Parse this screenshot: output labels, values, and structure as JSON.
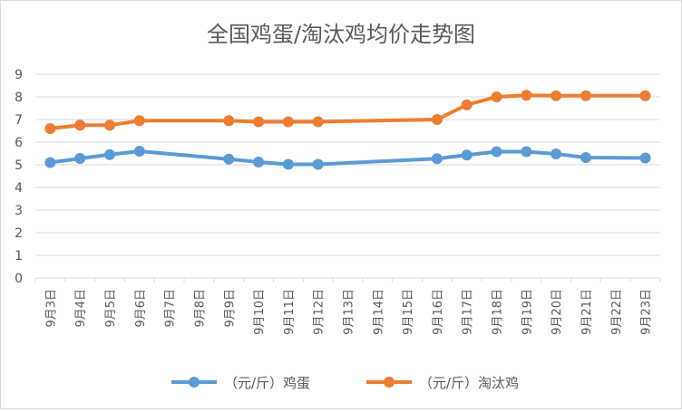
{
  "chart_data": {
    "type": "line",
    "title": "全国鸡蛋/淘汰鸡均价走势图",
    "categories": [
      "9月3日",
      "9月4日",
      "9月5日",
      "9月6日",
      "9月7日",
      "9月8日",
      "9月9日",
      "9月10日",
      "9月11日",
      "9月12日",
      "9月13日",
      "9月14日",
      "9月15日",
      "9月16日",
      "9月17日",
      "9月18日",
      "9月19日",
      "9月20日",
      "9月21日",
      "9月22日",
      "9月23日"
    ],
    "ylim": [
      0,
      9
    ],
    "yticks": [
      "0",
      "1",
      "2",
      "3",
      "4",
      "5",
      "6",
      "7",
      "8",
      "9"
    ],
    "grid": true,
    "legend": "bottom",
    "series": [
      {
        "name": "（元/斤）鸡蛋",
        "color": "#5B9BD5",
        "values": [
          5.1,
          5.28,
          5.45,
          5.6,
          null,
          null,
          5.25,
          5.12,
          5.02,
          5.02,
          null,
          null,
          null,
          5.27,
          5.43,
          5.58,
          5.58,
          5.48,
          5.32,
          null,
          5.3
        ]
      },
      {
        "name": "（元/斤）淘汰鸡",
        "color": "#ED7D31",
        "values": [
          6.6,
          6.75,
          6.75,
          6.95,
          null,
          null,
          6.95,
          6.9,
          6.9,
          6.9,
          null,
          null,
          null,
          7.0,
          7.65,
          8.0,
          8.07,
          8.05,
          8.05,
          null,
          8.05
        ]
      }
    ]
  }
}
